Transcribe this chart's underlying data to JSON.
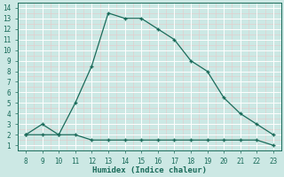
{
  "x_main": [
    8,
    9,
    10,
    11,
    12,
    13,
    14,
    15,
    16,
    17,
    18,
    19,
    20,
    21,
    22,
    23
  ],
  "y_main": [
    2,
    3,
    2,
    5,
    8.5,
    13.5,
    13,
    13,
    12,
    11,
    9,
    8,
    5.5,
    4,
    3,
    2
  ],
  "x_flat": [
    8,
    9,
    10,
    11,
    12,
    13,
    14,
    15,
    16,
    17,
    18,
    19,
    20,
    21,
    22,
    23
  ],
  "y_flat": [
    2,
    2,
    2,
    2,
    1.5,
    1.5,
    1.5,
    1.5,
    1.5,
    1.5,
    1.5,
    1.5,
    1.5,
    1.5,
    1.5,
    1
  ],
  "xlabel": "Humidex (Indice chaleur)",
  "line_color": "#1a6b5a",
  "bg_color": "#cce8e4",
  "grid_major_color": "#b5d8d4",
  "grid_minor_color": "#daf0ed",
  "xlim": [
    7.5,
    23.5
  ],
  "ylim": [
    0.5,
    14.5
  ],
  "xticks": [
    8,
    9,
    10,
    11,
    12,
    13,
    14,
    15,
    16,
    17,
    18,
    19,
    20,
    21,
    22,
    23
  ],
  "yticks": [
    1,
    2,
    3,
    4,
    5,
    6,
    7,
    8,
    9,
    10,
    11,
    12,
    13,
    14
  ]
}
